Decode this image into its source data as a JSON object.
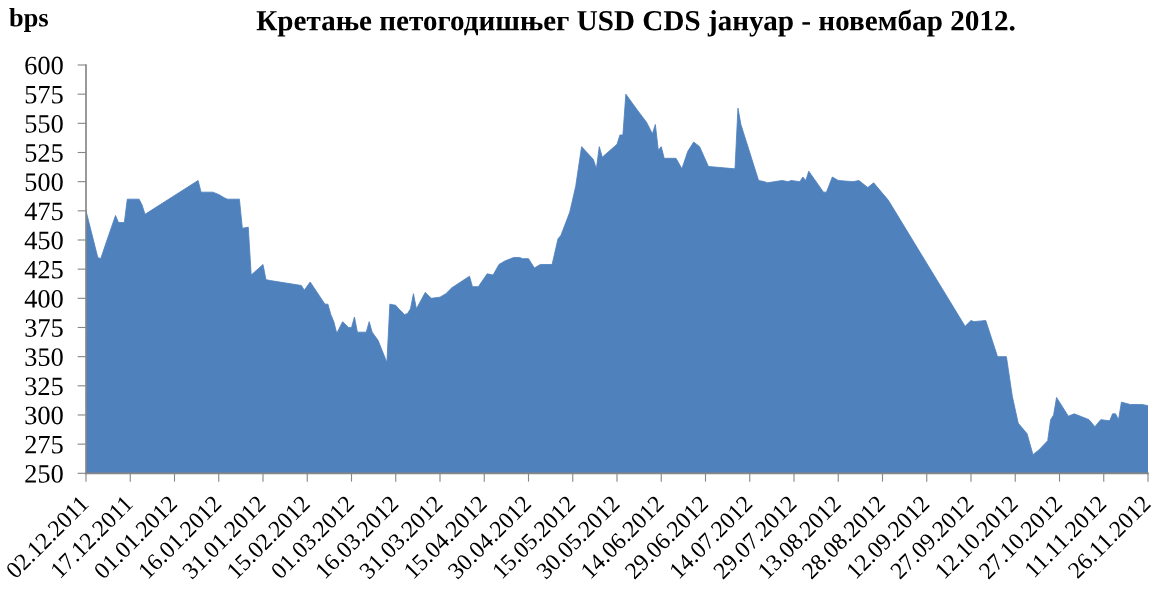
{
  "chart_data": {
    "type": "area",
    "title": "Кретање петогодишњег USD CDS јануар - новембар 2012.",
    "ylabel": "bps",
    "color": "#4f81bd",
    "x": [
      "2011-12-02",
      "2011-12-06",
      "2011-12-07",
      "2011-12-09",
      "2011-12-12",
      "2011-12-13",
      "2011-12-15",
      "2011-12-16",
      "2011-12-20",
      "2011-12-21",
      "2011-12-22",
      "2012-01-09",
      "2012-01-10",
      "2012-01-14",
      "2012-01-16",
      "2012-01-18",
      "2012-01-19",
      "2012-01-21",
      "2012-01-23",
      "2012-01-24",
      "2012-01-26",
      "2012-01-27",
      "2012-01-31",
      "2012-02-01",
      "2012-02-03",
      "2012-02-13",
      "2012-02-14",
      "2012-02-16",
      "2012-02-21",
      "2012-02-22",
      "2012-02-23",
      "2012-02-24",
      "2012-02-25",
      "2012-02-27",
      "2012-02-29",
      "2012-03-01",
      "2012-03-02",
      "2012-03-03",
      "2012-03-06",
      "2012-03-07",
      "2012-03-08",
      "2012-03-10",
      "2012-03-13",
      "2012-03-14",
      "2012-03-16",
      "2012-03-17",
      "2012-03-19",
      "2012-03-20",
      "2012-03-21",
      "2012-03-22",
      "2012-03-23",
      "2012-03-26",
      "2012-03-28",
      "2012-03-31",
      "2012-04-02",
      "2012-04-04",
      "2012-04-10",
      "2012-04-11",
      "2012-04-13",
      "2012-04-16",
      "2012-04-18",
      "2012-04-20",
      "2012-04-22",
      "2012-04-25",
      "2012-04-27",
      "2012-04-28",
      "2012-04-30",
      "2012-05-02",
      "2012-05-04",
      "2012-05-08",
      "2012-05-10",
      "2012-05-11",
      "2012-05-14",
      "2012-05-16",
      "2012-05-18",
      "2012-05-22",
      "2012-05-23",
      "2012-05-24",
      "2012-05-25",
      "2012-05-30",
      "2012-05-31",
      "2012-06-01",
      "2012-06-02",
      "2012-06-06",
      "2012-06-09",
      "2012-06-11",
      "2012-06-12",
      "2012-06-13",
      "2012-06-14",
      "2012-06-15",
      "2012-06-19",
      "2012-06-21",
      "2012-06-23",
      "2012-06-25",
      "2012-06-27",
      "2012-06-30",
      "2012-07-09",
      "2012-07-10",
      "2012-07-11",
      "2012-07-17",
      "2012-07-19",
      "2012-07-20",
      "2012-07-25",
      "2012-07-27",
      "2012-07-28",
      "2012-07-31",
      "2012-08-01",
      "2012-08-02",
      "2012-08-03",
      "2012-08-08",
      "2012-08-09",
      "2012-08-11",
      "2012-08-13",
      "2012-08-18",
      "2012-08-20",
      "2012-08-23",
      "2012-08-25",
      "2012-08-30",
      "2012-09-25",
      "2012-09-27",
      "2012-09-28",
      "2012-10-02",
      "2012-10-06",
      "2012-10-09",
      "2012-10-11",
      "2012-10-13",
      "2012-10-16",
      "2012-10-18",
      "2012-10-20",
      "2012-10-23",
      "2012-10-24",
      "2012-10-25",
      "2012-10-26",
      "2012-10-30",
      "2012-11-01",
      "2012-11-06",
      "2012-11-08",
      "2012-11-10",
      "2012-11-13",
      "2012-11-14",
      "2012-11-15",
      "2012-11-16",
      "2012-11-17",
      "2012-11-20",
      "2012-11-24",
      "2012-11-26"
    ],
    "values": [
      475,
      435,
      434,
      449,
      471,
      465,
      465,
      485,
      485,
      480,
      472,
      501,
      491,
      491,
      489,
      486,
      485,
      485,
      485,
      460,
      461,
      420,
      429,
      416,
      415,
      411,
      407,
      414,
      395,
      395,
      386,
      380,
      370,
      380,
      375,
      375,
      384,
      371,
      371,
      380,
      371,
      364,
      345,
      395,
      394,
      391,
      386,
      387,
      391,
      404,
      391,
      405,
      400,
      401,
      404,
      409,
      419,
      410,
      410,
      421,
      420,
      429,
      432,
      435,
      435,
      434,
      434,
      426,
      429,
      429,
      451,
      454,
      474,
      496,
      530,
      519,
      511,
      530,
      521,
      532,
      540,
      540,
      575,
      561,
      551,
      541,
      549,
      527,
      530,
      520,
      520,
      511,
      526,
      534,
      530,
      513,
      511,
      563,
      549,
      501,
      500,
      499,
      501,
      500,
      501,
      500,
      504,
      501,
      509,
      491,
      491,
      504,
      501,
      500,
      501,
      495,
      499,
      484,
      376,
      381,
      380,
      381,
      350,
      350,
      316,
      293,
      284,
      266,
      270,
      278,
      296,
      300,
      315,
      299,
      301,
      296,
      290,
      296,
      295,
      301,
      301,
      296,
      311,
      309,
      309,
      308
    ],
    "xlim": [
      "2011-12-02",
      "2012-11-26"
    ],
    "xticks": [
      {
        "value": "2011-12-02",
        "label": "02.12.2011"
      },
      {
        "value": "2011-12-17",
        "label": "17.12.2011"
      },
      {
        "value": "2012-01-01",
        "label": "01.01.2012"
      },
      {
        "value": "2012-01-16",
        "label": "16.01.2012"
      },
      {
        "value": "2012-01-31",
        "label": "31.01.2012"
      },
      {
        "value": "2012-02-15",
        "label": "15.02.2012"
      },
      {
        "value": "2012-03-01",
        "label": "01.03.2012"
      },
      {
        "value": "2012-03-16",
        "label": "16.03.2012"
      },
      {
        "value": "2012-03-31",
        "label": "31.03.2012"
      },
      {
        "value": "2012-04-15",
        "label": "15.04.2012"
      },
      {
        "value": "2012-04-30",
        "label": "30.04.2012"
      },
      {
        "value": "2012-05-15",
        "label": "15.05.2012"
      },
      {
        "value": "2012-05-30",
        "label": "30.05.2012"
      },
      {
        "value": "2012-06-14",
        "label": "14.06.2012"
      },
      {
        "value": "2012-06-29",
        "label": "29.06.2012"
      },
      {
        "value": "2012-07-14",
        "label": "14.07.2012"
      },
      {
        "value": "2012-07-29",
        "label": "29.07.2012"
      },
      {
        "value": "2012-08-13",
        "label": "13.08.2012"
      },
      {
        "value": "2012-08-28",
        "label": "28.08.2012"
      },
      {
        "value": "2012-09-12",
        "label": "12.09.2012"
      },
      {
        "value": "2012-09-27",
        "label": "27.09.2012"
      },
      {
        "value": "2012-10-12",
        "label": "12.10.2012"
      },
      {
        "value": "2012-10-27",
        "label": "27.10.2012"
      },
      {
        "value": "2012-11-11",
        "label": "11.11.2012"
      },
      {
        "value": "2012-11-26",
        "label": "26.11.2012"
      }
    ],
    "ylim": [
      250,
      600
    ],
    "yticks": [
      250,
      275,
      300,
      325,
      350,
      375,
      400,
      425,
      450,
      475,
      500,
      525,
      550,
      575,
      600
    ]
  }
}
